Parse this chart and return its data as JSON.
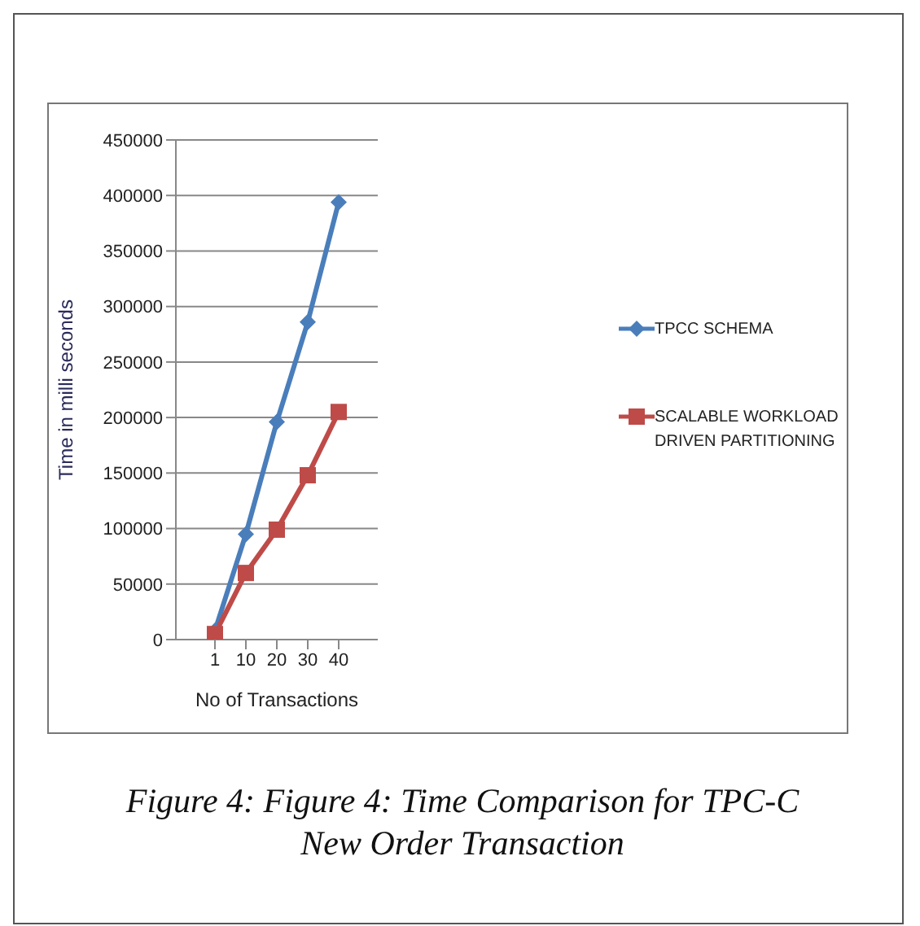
{
  "chart_data": {
    "type": "line",
    "title": "Figure 4: Figure 4: Time Comparison for TPC-C New Order Transaction",
    "xlabel": "No of Transactions",
    "ylabel": "Time in milli seconds",
    "categories": [
      "1",
      "10",
      "20",
      "30",
      "40"
    ],
    "ylim": [
      0,
      450000
    ],
    "yticks": [
      0,
      50000,
      100000,
      150000,
      200000,
      250000,
      300000,
      350000,
      400000,
      450000
    ],
    "grid": "y",
    "legend": "right",
    "series": [
      {
        "name": "TPCC SCHEMA",
        "color": "#4a7ebb",
        "marker": "diamond",
        "values": [
          8000,
          95000,
          196000,
          286000,
          394000
        ]
      },
      {
        "name": "SCALABLE WORKLOAD DRIVEN PARTITIONING",
        "color": "#be4b48",
        "marker": "square",
        "values": [
          5000,
          60000,
          99000,
          148000,
          205000
        ]
      }
    ]
  }
}
